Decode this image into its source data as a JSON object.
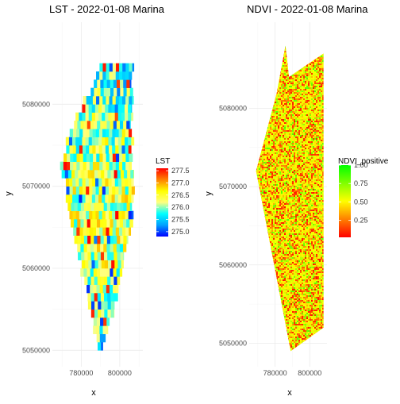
{
  "chart_data": [
    {
      "type": "heatmap",
      "title": "LST - 2022-01-08 Marina",
      "xlabel": "x",
      "ylabel": "y",
      "x_ticks": [
        780000,
        800000
      ],
      "x_tick_labels": [
        "780000",
        "800000"
      ],
      "y_ticks": [
        5050000,
        5060000,
        5070000,
        5080000
      ],
      "y_tick_labels": [
        "5050000",
        "5060000",
        "5070000",
        "5080000"
      ],
      "xlim": [
        765000,
        812000
      ],
      "ylim": [
        5048000,
        5090000
      ],
      "extent": {
        "top": [
          5084500,
          790000,
          806500
        ],
        "upper_left": [
          5076500,
          773500,
          806500
        ],
        "left": [
          5072000,
          769500,
          807000
        ],
        "lower_left": [
          5066000,
          775000,
          807000
        ],
        "mid": [
          5060000,
          780000,
          801000
        ],
        "lower": [
          5054000,
          785500,
          796000
        ],
        "bottom": [
          5050000,
          788500,
          791000
        ]
      },
      "legend": {
        "title": "LST",
        "position": "right",
        "range": [
          274.8,
          277.6
        ],
        "ticks": [
          275.0,
          275.5,
          276.0,
          276.5,
          277.0,
          277.5
        ],
        "tick_labels": [
          "275.0",
          "275.5",
          "276.0",
          "276.5",
          "277.0",
          "277.5"
        ],
        "colors": [
          "#0000ff",
          "#00a0ff",
          "#00ffff",
          "#ffff80",
          "#ffff00",
          "#ff8000",
          "#ff0000"
        ]
      },
      "grid": true
    },
    {
      "type": "heatmap",
      "title": "NDVI - 2022-01-08 Marina",
      "xlabel": "x",
      "ylabel": "y",
      "x_ticks": [
        780000,
        800000
      ],
      "x_tick_labels": [
        "780000",
        "800000"
      ],
      "y_ticks": [
        5050000,
        5060000,
        5070000,
        5080000
      ],
      "y_tick_labels": [
        "5050000",
        "5060000",
        "5070000",
        "5080000"
      ],
      "xlim": [
        765000,
        810000
      ],
      "ylim": [
        5047000,
        5091000
      ],
      "extent_polygon": [
        [
          786000,
          5088000
        ],
        [
          788000,
          5084000
        ],
        [
          808000,
          5087000
        ],
        [
          808000,
          5052000
        ],
        [
          789000,
          5049000
        ],
        [
          769000,
          5072000
        ],
        [
          781000,
          5082000
        ]
      ],
      "legend": {
        "title": "NDVI_positive",
        "position": "right",
        "range": [
          0.02,
          1.0
        ],
        "ticks": [
          0.25,
          0.5,
          0.75,
          1.0
        ],
        "tick_labels": [
          "0.25",
          "0.50",
          "0.75",
          "1.00"
        ],
        "colors": [
          "#ff0000",
          "#ff8000",
          "#ffff00",
          "#80ff00",
          "#00ff00"
        ]
      },
      "grid": true
    }
  ]
}
